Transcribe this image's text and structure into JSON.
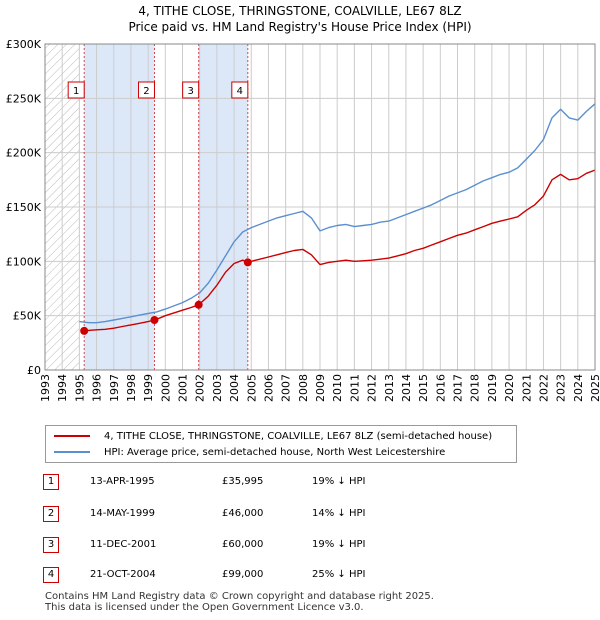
{
  "title_line1": "4, TITHE CLOSE, THRINGSTONE, COALVILLE, LE67 8LZ",
  "title_line2": "Price paid vs. HM Land Registry's House Price Index (HPI)",
  "legend": {
    "property": "4, TITHE CLOSE, THRINGSTONE, COALVILLE, LE67 8LZ (semi-detached house)",
    "hpi": "HPI: Average price, semi-detached house, North West Leicestershire"
  },
  "colors": {
    "property": "#cc0000",
    "hpi": "#5b8fd0",
    "shade": "#dce8f8",
    "grid": "#cccccc"
  },
  "chart_data": {
    "type": "line",
    "xlim": [
      1993,
      2025
    ],
    "ylim": [
      0,
      300000
    ],
    "yticks": [
      0,
      50000,
      100000,
      150000,
      200000,
      250000,
      300000
    ],
    "ytick_labels": [
      "£0",
      "£50K",
      "£100K",
      "£150K",
      "£200K",
      "£250K",
      "£300K"
    ],
    "xticks": [
      1993,
      1994,
      1995,
      1996,
      1997,
      1998,
      1999,
      2000,
      2001,
      2002,
      2003,
      2004,
      2005,
      2006,
      2007,
      2008,
      2009,
      2010,
      2011,
      2012,
      2013,
      2014,
      2015,
      2016,
      2017,
      2018,
      2019,
      2020,
      2021,
      2022,
      2023,
      2024,
      2025
    ],
    "xtick_labels": [
      "1993",
      "1994",
      "1995",
      "1996",
      "1997",
      "1998",
      "1999",
      "2000",
      "2001",
      "2002",
      "2003",
      "2004",
      "2005",
      "2006",
      "2007",
      "2008",
      "2009",
      "2010",
      "2011",
      "2012",
      "2013",
      "2014",
      "2015",
      "2016",
      "2017",
      "2018",
      "2019",
      "2020",
      "2021",
      "2022",
      "2023",
      "2024",
      "2025"
    ],
    "hatch_until": 1995.0,
    "series": [
      {
        "name": "HPI: Average price, semi-detached house, North West Leicestershire",
        "color": "#5b8fd0",
        "points": [
          [
            1995.0,
            44500
          ],
          [
            1995.3,
            44000
          ],
          [
            1995.6,
            43500
          ],
          [
            1996.0,
            43500
          ],
          [
            1996.5,
            44500
          ],
          [
            1997.0,
            46000
          ],
          [
            1997.5,
            47500
          ],
          [
            1998.0,
            49000
          ],
          [
            1998.5,
            50500
          ],
          [
            1999.0,
            52000
          ],
          [
            1999.5,
            53500
          ],
          [
            2000.0,
            56000
          ],
          [
            2000.5,
            59000
          ],
          [
            2001.0,
            62000
          ],
          [
            2001.5,
            66000
          ],
          [
            2002.0,
            71000
          ],
          [
            2002.5,
            80000
          ],
          [
            2003.0,
            92000
          ],
          [
            2003.5,
            105000
          ],
          [
            2004.0,
            118000
          ],
          [
            2004.5,
            127000
          ],
          [
            2005.0,
            131000
          ],
          [
            2005.5,
            134000
          ],
          [
            2006.0,
            137000
          ],
          [
            2006.5,
            140000
          ],
          [
            2007.0,
            142000
          ],
          [
            2007.5,
            144000
          ],
          [
            2008.0,
            146000
          ],
          [
            2008.5,
            140000
          ],
          [
            2009.0,
            128000
          ],
          [
            2009.5,
            131000
          ],
          [
            2010.0,
            133000
          ],
          [
            2010.5,
            134000
          ],
          [
            2011.0,
            132000
          ],
          [
            2011.5,
            133000
          ],
          [
            2012.0,
            134000
          ],
          [
            2012.5,
            136000
          ],
          [
            2013.0,
            137000
          ],
          [
            2013.5,
            140000
          ],
          [
            2014.0,
            143000
          ],
          [
            2014.5,
            146000
          ],
          [
            2015.0,
            149000
          ],
          [
            2015.5,
            152000
          ],
          [
            2016.0,
            156000
          ],
          [
            2016.5,
            160000
          ],
          [
            2017.0,
            163000
          ],
          [
            2017.5,
            166000
          ],
          [
            2018.0,
            170000
          ],
          [
            2018.5,
            174000
          ],
          [
            2019.0,
            177000
          ],
          [
            2019.5,
            180000
          ],
          [
            2020.0,
            182000
          ],
          [
            2020.5,
            186000
          ],
          [
            2021.0,
            194000
          ],
          [
            2021.5,
            202000
          ],
          [
            2022.0,
            212000
          ],
          [
            2022.5,
            232000
          ],
          [
            2023.0,
            240000
          ],
          [
            2023.5,
            232000
          ],
          [
            2024.0,
            230000
          ],
          [
            2024.5,
            238000
          ],
          [
            2025.0,
            245000
          ]
        ]
      },
      {
        "name": "4, TITHE CLOSE, THRINGSTONE, COALVILLE, LE67 8LZ (semi-detached house)",
        "color": "#cc0000",
        "points": [
          [
            1995.28,
            35995
          ],
          [
            1995.6,
            36500
          ],
          [
            1996.0,
            37000
          ],
          [
            1996.5,
            37500
          ],
          [
            1997.0,
            38500
          ],
          [
            1997.5,
            40000
          ],
          [
            1998.0,
            41500
          ],
          [
            1998.5,
            43000
          ],
          [
            1999.0,
            44500
          ],
          [
            1999.37,
            46000
          ],
          [
            1999.7,
            48000
          ],
          [
            2000.0,
            50000
          ],
          [
            2000.5,
            52500
          ],
          [
            2001.0,
            55000
          ],
          [
            2001.5,
            57500
          ],
          [
            2001.94,
            60000
          ],
          [
            2002.5,
            68000
          ],
          [
            2003.0,
            78000
          ],
          [
            2003.5,
            90000
          ],
          [
            2004.0,
            98000
          ],
          [
            2004.5,
            101000
          ],
          [
            2004.8,
            99000
          ],
          [
            2005.0,
            100000
          ],
          [
            2005.5,
            102000
          ],
          [
            2006.0,
            104000
          ],
          [
            2006.5,
            106000
          ],
          [
            2007.0,
            108000
          ],
          [
            2007.5,
            110000
          ],
          [
            2008.0,
            111000
          ],
          [
            2008.5,
            106000
          ],
          [
            2009.0,
            97000
          ],
          [
            2009.5,
            99000
          ],
          [
            2010.0,
            100000
          ],
          [
            2010.5,
            101000
          ],
          [
            2011.0,
            100000
          ],
          [
            2011.5,
            100500
          ],
          [
            2012.0,
            101000
          ],
          [
            2012.5,
            102000
          ],
          [
            2013.0,
            103000
          ],
          [
            2013.5,
            105000
          ],
          [
            2014.0,
            107000
          ],
          [
            2014.5,
            110000
          ],
          [
            2015.0,
            112000
          ],
          [
            2015.5,
            115000
          ],
          [
            2016.0,
            118000
          ],
          [
            2016.5,
            121000
          ],
          [
            2017.0,
            124000
          ],
          [
            2017.5,
            126000
          ],
          [
            2018.0,
            129000
          ],
          [
            2018.5,
            132000
          ],
          [
            2019.0,
            135000
          ],
          [
            2019.5,
            137000
          ],
          [
            2020.0,
            139000
          ],
          [
            2020.5,
            141000
          ],
          [
            2021.0,
            147000
          ],
          [
            2021.5,
            152000
          ],
          [
            2022.0,
            160000
          ],
          [
            2022.5,
            175000
          ],
          [
            2023.0,
            180000
          ],
          [
            2023.5,
            175000
          ],
          [
            2024.0,
            176000
          ],
          [
            2024.5,
            181000
          ],
          [
            2025.0,
            184000
          ]
        ]
      }
    ],
    "sales": [
      {
        "label": "1",
        "date": "13-APR-1995",
        "x": 1995.28,
        "price": 35995,
        "price_text": "£35,995",
        "hpi_text": "19% ↓ HPI"
      },
      {
        "label": "2",
        "date": "14-MAY-1999",
        "x": 1999.37,
        "price": 46000,
        "price_text": "£46,000",
        "hpi_text": "14% ↓ HPI"
      },
      {
        "label": "3",
        "date": "11-DEC-2001",
        "x": 2001.94,
        "price": 60000,
        "price_text": "£60,000",
        "hpi_text": "19% ↓ HPI"
      },
      {
        "label": "4",
        "date": "21-OCT-2004",
        "x": 2004.8,
        "price": 99000,
        "price_text": "£99,000",
        "hpi_text": "25% ↓ HPI"
      }
    ]
  },
  "footer": {
    "line1": "Contains HM Land Registry data © Crown copyright and database right 2025.",
    "line2": "This data is licensed under the Open Government Licence v3.0."
  }
}
